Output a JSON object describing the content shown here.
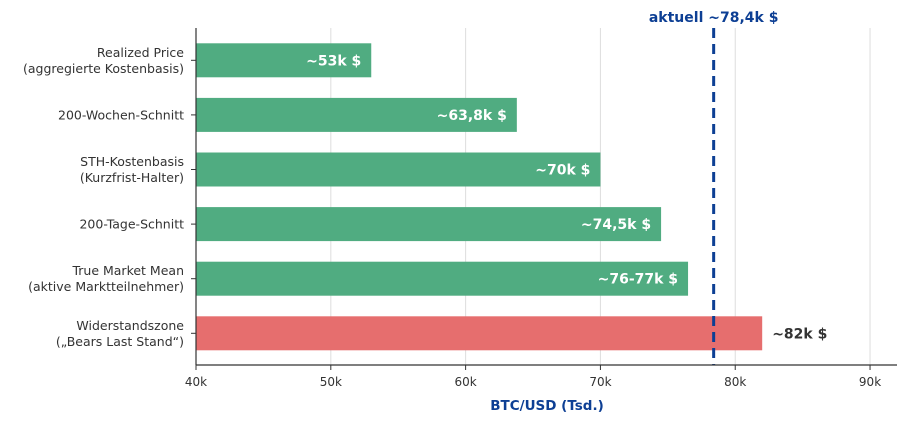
{
  "chart_data": {
    "type": "bar",
    "orientation": "horizontal",
    "categories": [
      [
        "Realized Price",
        "(aggregierte Kostenbasis)"
      ],
      [
        "200-Wochen-Schnitt"
      ],
      [
        "STH-Kostenbasis",
        "(Kurzfrist-Halter)"
      ],
      [
        "200-Tage-Schnitt"
      ],
      [
        "True Market Mean",
        "(aktive Marktteilnehmer)"
      ],
      [
        "Widerstandszone",
        "(„Bears Last Stand“)"
      ]
    ],
    "values": [
      53,
      63.8,
      70,
      74.5,
      76.5,
      82
    ],
    "data_labels": [
      "~53k $",
      "~63,8k $",
      "~70k $",
      "~74,5k $",
      "~76-77k $",
      "~82k $"
    ],
    "bar_colors": [
      "#4caa7e",
      "#4caa7e",
      "#4caa7e",
      "#4caa7e",
      "#4caa7e",
      "#e56b6b"
    ],
    "xlabel": "BTC/USD (Tsd.)",
    "ylabel": "",
    "xlim": [
      40,
      92
    ],
    "xticks": [
      40,
      50,
      60,
      70,
      80,
      90
    ],
    "xtick_labels": [
      "40k",
      "50k",
      "60k",
      "70k",
      "80k",
      "90k"
    ],
    "grid": "vertical",
    "reference_line": {
      "value": 78.4,
      "label": "aktuell ~78,4k $",
      "color": "#0d3f94",
      "style": "dashed"
    }
  },
  "colors": {
    "label_dark": "#333333",
    "label_light": "#ffffff",
    "axis": "#333333",
    "grid": "#dddddd",
    "accent": "#0d3f94"
  }
}
